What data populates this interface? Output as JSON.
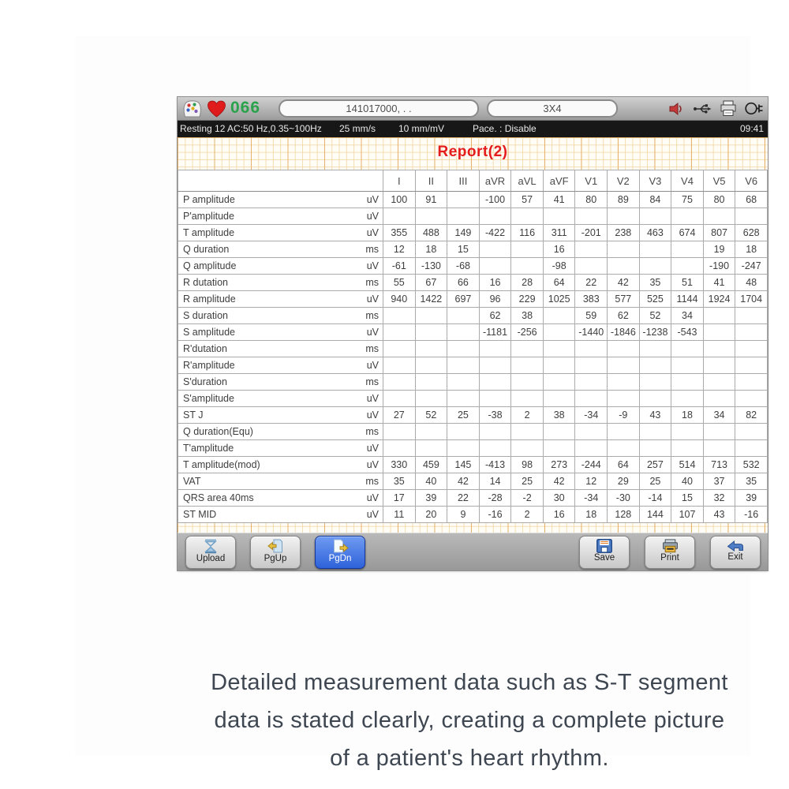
{
  "device": {
    "toolbar": {
      "heart_rate": "066",
      "patient_id": "141017000, . .",
      "display_mode": "3X4"
    },
    "status_bar": {
      "items": [
        "Resting 12 AC:50 Hz,0.35~100Hz",
        "25 mm/s",
        "10 mm/mV",
        "Pace. : Disable"
      ],
      "time": "09:41"
    },
    "report": {
      "title": "Report(2)",
      "columns": [
        "I",
        "II",
        "III",
        "aVR",
        "aVL",
        "aVF",
        "V1",
        "V2",
        "V3",
        "V4",
        "V5",
        "V6"
      ],
      "rows": [
        {
          "label": "P amplitude",
          "unit": "uV",
          "values": [
            "100",
            "91",
            "",
            "-100",
            "57",
            "41",
            "80",
            "89",
            "84",
            "75",
            "80",
            "68"
          ]
        },
        {
          "label": "P'amplitude",
          "unit": "uV",
          "values": [
            "",
            "",
            "",
            "",
            "",
            "",
            "",
            "",
            "",
            "",
            "",
            ""
          ]
        },
        {
          "label": "T amplitude",
          "unit": "uV",
          "values": [
            "355",
            "488",
            "149",
            "-422",
            "116",
            "311",
            "-201",
            "238",
            "463",
            "674",
            "807",
            "628"
          ]
        },
        {
          "label": "Q duration",
          "unit": "ms",
          "values": [
            "12",
            "18",
            "15",
            "",
            "",
            "16",
            "",
            "",
            "",
            "",
            "19",
            "18"
          ]
        },
        {
          "label": "Q amplitude",
          "unit": "uV",
          "values": [
            "-61",
            "-130",
            "-68",
            "",
            "",
            "-98",
            "",
            "",
            "",
            "",
            "-190",
            "-247"
          ]
        },
        {
          "label": "R dutation",
          "unit": "ms",
          "values": [
            "55",
            "67",
            "66",
            "16",
            "28",
            "64",
            "22",
            "42",
            "35",
            "51",
            "41",
            "48"
          ]
        },
        {
          "label": "R amplitude",
          "unit": "uV",
          "values": [
            "940",
            "1422",
            "697",
            "96",
            "229",
            "1025",
            "383",
            "577",
            "525",
            "1144",
            "1924",
            "1704"
          ]
        },
        {
          "label": "S duration",
          "unit": "ms",
          "values": [
            "",
            "",
            "",
            "62",
            "38",
            "",
            "59",
            "62",
            "52",
            "34",
            "",
            ""
          ]
        },
        {
          "label": "S amplitude",
          "unit": "uV",
          "values": [
            "",
            "",
            "",
            "-1181",
            "-256",
            "",
            "-1440",
            "-1846",
            "-1238",
            "-543",
            "",
            ""
          ]
        },
        {
          "label": "R'dutation",
          "unit": "ms",
          "values": [
            "",
            "",
            "",
            "",
            "",
            "",
            "",
            "",
            "",
            "",
            "",
            ""
          ]
        },
        {
          "label": "R'amplitude",
          "unit": "uV",
          "values": [
            "",
            "",
            "",
            "",
            "",
            "",
            "",
            "",
            "",
            "",
            "",
            ""
          ]
        },
        {
          "label": "S'duration",
          "unit": "ms",
          "values": [
            "",
            "",
            "",
            "",
            "",
            "",
            "",
            "",
            "",
            "",
            "",
            ""
          ]
        },
        {
          "label": "S'amplitude",
          "unit": "uV",
          "values": [
            "",
            "",
            "",
            "",
            "",
            "",
            "",
            "",
            "",
            "",
            "",
            ""
          ]
        },
        {
          "label": "ST J",
          "unit": "uV",
          "values": [
            "27",
            "52",
            "25",
            "-38",
            "2",
            "38",
            "-34",
            "-9",
            "43",
            "18",
            "34",
            "82"
          ]
        },
        {
          "label": "Q duration(Equ)",
          "unit": "ms",
          "values": [
            "",
            "",
            "",
            "",
            "",
            "",
            "",
            "",
            "",
            "",
            "",
            ""
          ]
        },
        {
          "label": "T'amplitude",
          "unit": "uV",
          "values": [
            "",
            "",
            "",
            "",
            "",
            "",
            "",
            "",
            "",
            "",
            "",
            ""
          ]
        },
        {
          "label": "T amplitude(mod)",
          "unit": "uV",
          "values": [
            "330",
            "459",
            "145",
            "-413",
            "98",
            "273",
            "-244",
            "64",
            "257",
            "514",
            "713",
            "532"
          ]
        },
        {
          "label": "VAT",
          "unit": "ms",
          "values": [
            "35",
            "40",
            "42",
            "14",
            "25",
            "42",
            "12",
            "29",
            "25",
            "40",
            "37",
            "35"
          ]
        },
        {
          "label": "QRS area 40ms",
          "unit": "uV",
          "values": [
            "17",
            "39",
            "22",
            "-28",
            "-2",
            "30",
            "-34",
            "-30",
            "-14",
            "15",
            "32",
            "39"
          ]
        },
        {
          "label": "ST MID",
          "unit": "uV",
          "values": [
            "11",
            "20",
            "9",
            "-16",
            "2",
            "16",
            "18",
            "128",
            "144",
            "107",
            "43",
            "-16"
          ]
        }
      ]
    },
    "buttons": [
      {
        "label": "Upload",
        "icon": "upload-icon",
        "active": false
      },
      {
        "label": "PgUp",
        "icon": "page-up-icon",
        "active": false
      },
      {
        "label": "PgDn",
        "icon": "page-down-icon",
        "active": true
      },
      {
        "label": "Save",
        "icon": "save-icon",
        "active": false
      },
      {
        "label": "Print",
        "icon": "print-icon",
        "active": false
      },
      {
        "label": "Exit",
        "icon": "exit-icon",
        "active": false
      }
    ]
  },
  "caption": {
    "lines": [
      "Detailed measurement data such as S-T segment",
      "data is stated clearly, creating a complete picture",
      "of a patient's heart rhythm."
    ]
  },
  "colors": {
    "heart_rate_green": "#29a24b",
    "report_title_red": "#e41c1c",
    "active_button_blue": "#2e62d9",
    "grid_line_orange": "#e6b068",
    "caption_text": "#3e4651"
  }
}
